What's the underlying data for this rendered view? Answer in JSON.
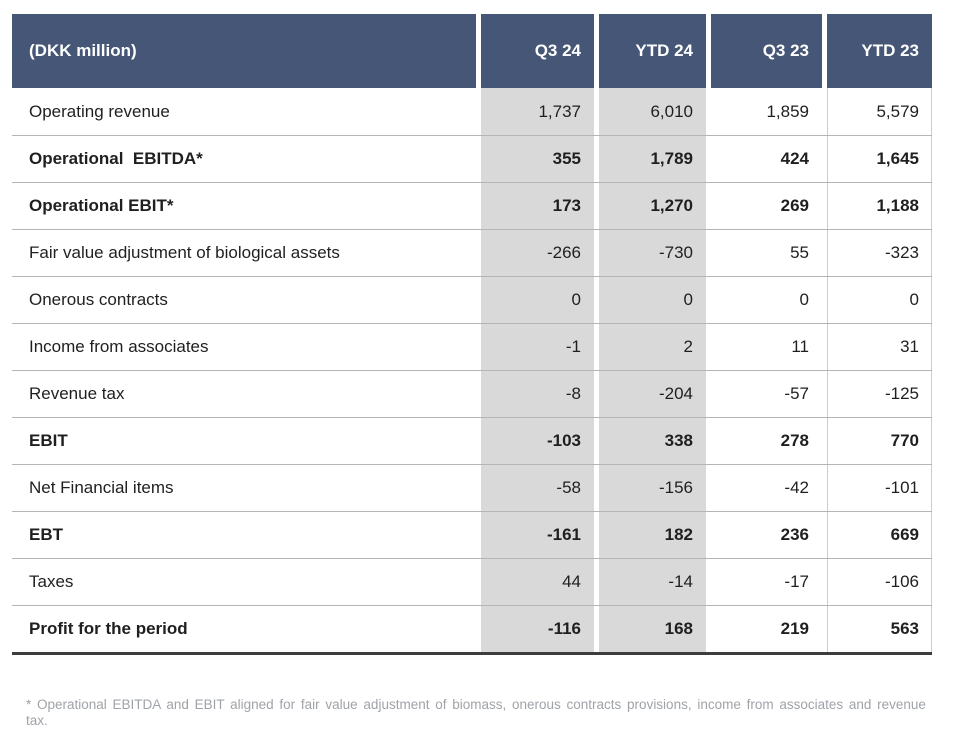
{
  "table": {
    "unit_label": "(DKK million)",
    "columns": [
      "Q3 24",
      "YTD 24",
      "Q3 23",
      "YTD 23"
    ],
    "highlight_columns": [
      "Q3 24",
      "YTD 24"
    ],
    "rows": [
      {
        "label": "Operating revenue",
        "bold": false,
        "values": [
          "1,737",
          "6,010",
          "1,859",
          "5,579"
        ]
      },
      {
        "label": "Operational  EBITDA*",
        "bold": true,
        "values": [
          "355",
          "1,789",
          "424",
          "1,645"
        ]
      },
      {
        "label": "Operational EBIT*",
        "bold": true,
        "values": [
          "173",
          "1,270",
          "269",
          "1,188"
        ]
      },
      {
        "label": "Fair value adjustment of biological assets",
        "bold": false,
        "values": [
          "-266",
          "-730",
          "55",
          "-323"
        ]
      },
      {
        "label": "Onerous contracts",
        "bold": false,
        "values": [
          "0",
          "0",
          "0",
          "0"
        ]
      },
      {
        "label": "Income from associates",
        "bold": false,
        "values": [
          "-1",
          "2",
          "11",
          "31"
        ]
      },
      {
        "label": "Revenue tax",
        "bold": false,
        "values": [
          "-8",
          "-204",
          "-57",
          "-125"
        ]
      },
      {
        "label": "EBIT",
        "bold": true,
        "values": [
          "-103",
          "338",
          "278",
          "770"
        ]
      },
      {
        "label": "Net Financial items",
        "bold": false,
        "values": [
          "-58",
          "-156",
          "-42",
          "-101"
        ]
      },
      {
        "label": "EBT",
        "bold": true,
        "values": [
          "-161",
          "182",
          "236",
          "669"
        ]
      },
      {
        "label": "Taxes",
        "bold": false,
        "values": [
          "44",
          "-14",
          "-17",
          "-106"
        ]
      },
      {
        "label": "Profit for the period",
        "bold": true,
        "values": [
          "-116",
          "168",
          "219",
          "563"
        ]
      }
    ]
  },
  "footnote": "* Operational EBITDA and EBIT aligned for fair value adjustment of biomass, onerous contracts provisions, income from associates and revenue tax.",
  "colors": {
    "header_bg": "#455677",
    "header_text": "#ffffff",
    "highlight_col_bg": "#d9d9d9",
    "row_line": "#b5b5b5",
    "bottom_border": "#3d3d3d",
    "footnote_text": "#9fa3a8"
  },
  "chart_data": {
    "type": "table",
    "title": "(DKK million)",
    "categories": [
      "Q3 24",
      "YTD 24",
      "Q3 23",
      "YTD 23"
    ],
    "series": [
      {
        "name": "Operating revenue",
        "values": [
          1737,
          6010,
          1859,
          5579
        ]
      },
      {
        "name": "Operational EBITDA*",
        "values": [
          355,
          1789,
          424,
          1645
        ]
      },
      {
        "name": "Operational EBIT*",
        "values": [
          173,
          1270,
          269,
          1188
        ]
      },
      {
        "name": "Fair value adjustment of biological assets",
        "values": [
          -266,
          -730,
          55,
          -323
        ]
      },
      {
        "name": "Onerous contracts",
        "values": [
          0,
          0,
          0,
          0
        ]
      },
      {
        "name": "Income from associates",
        "values": [
          -1,
          2,
          11,
          31
        ]
      },
      {
        "name": "Revenue tax",
        "values": [
          -8,
          -204,
          -57,
          -125
        ]
      },
      {
        "name": "EBIT",
        "values": [
          -103,
          338,
          278,
          770
        ]
      },
      {
        "name": "Net Financial items",
        "values": [
          -58,
          -156,
          -42,
          -101
        ]
      },
      {
        "name": "EBT",
        "values": [
          -161,
          182,
          236,
          669
        ]
      },
      {
        "name": "Taxes",
        "values": [
          44,
          -14,
          -17,
          -106
        ]
      },
      {
        "name": "Profit for the period",
        "values": [
          -116,
          168,
          219,
          563
        ]
      }
    ],
    "notes": [
      "* Operational EBITDA and EBIT aligned for fair value adjustment of biomass, onerous contracts provisions, income from associates and revenue tax."
    ],
    "layout": {
      "highlighted_columns": [
        "Q3 24",
        "YTD 24"
      ],
      "grid": "horizontal-lines"
    }
  }
}
